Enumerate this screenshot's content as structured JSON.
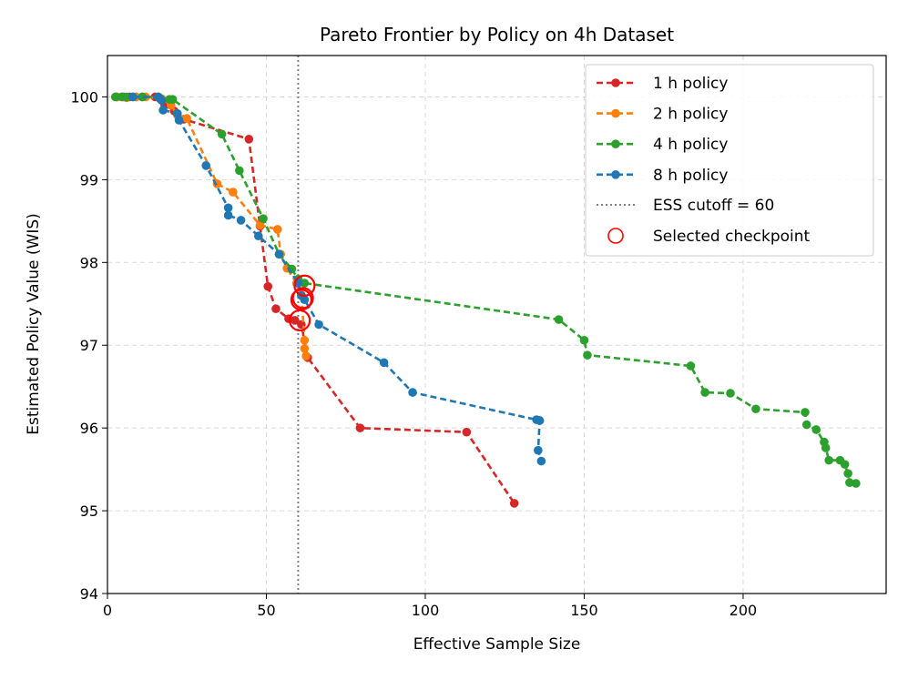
{
  "chart_data": {
    "type": "line",
    "title": "Pareto Frontier by Policy on 4h Dataset",
    "xlabel": "Effective Sample Size",
    "ylabel": "Estimated Policy Value (WIS)",
    "xlim": [
      0,
      245
    ],
    "ylim": [
      94,
      100.5
    ],
    "xticks": [
      0,
      50,
      100,
      150,
      200
    ],
    "yticks": [
      94,
      95,
      96,
      97,
      98,
      99,
      100
    ],
    "grid": true,
    "legend_position": "top-right",
    "ess_cutoff": {
      "x": 60,
      "label": "ESS cutoff = 60",
      "color": "#808080"
    },
    "selected_label": "Selected checkpoint",
    "selected_color": "#ff0000",
    "series": [
      {
        "name": "1 h policy",
        "color": "#d62728",
        "points": [
          [
            3,
            100.0
          ],
          [
            5,
            100.0
          ],
          [
            7,
            100.0
          ],
          [
            9,
            100.0
          ],
          [
            11,
            100.0
          ],
          [
            15,
            100.0
          ],
          [
            18,
            99.9
          ],
          [
            21,
            99.83
          ],
          [
            24,
            99.73
          ],
          [
            44.5,
            99.49
          ],
          [
            48,
            98.44
          ],
          [
            50.5,
            97.71
          ],
          [
            53,
            97.44
          ],
          [
            57,
            97.32
          ],
          [
            59,
            97.3
          ],
          [
            61,
            97.25
          ],
          [
            63,
            96.85
          ],
          [
            79.5,
            96.0
          ],
          [
            113,
            95.95
          ],
          [
            128,
            95.09
          ]
        ],
        "selected": [
          61,
          97.55
        ]
      },
      {
        "name": "2 h policy",
        "color": "#ff7f0e",
        "points": [
          [
            3,
            100.0
          ],
          [
            6,
            99.99
          ],
          [
            9,
            100.0
          ],
          [
            12,
            100.0
          ],
          [
            17,
            99.98
          ],
          [
            20,
            99.9
          ],
          [
            22,
            99.78
          ],
          [
            25,
            99.74
          ],
          [
            34.5,
            98.95
          ],
          [
            39.5,
            98.85
          ],
          [
            48,
            98.45
          ],
          [
            53.5,
            98.4
          ],
          [
            54.5,
            98.1
          ],
          [
            56.5,
            97.93
          ],
          [
            59.5,
            97.75
          ],
          [
            61,
            97.61
          ],
          [
            62,
            97.06
          ],
          [
            62,
            96.96
          ],
          [
            62.5,
            96.87
          ]
        ],
        "selected": [
          60.5,
          97.3
        ]
      },
      {
        "name": "4 h policy",
        "color": "#2ca02c",
        "points": [
          [
            2.5,
            100.0
          ],
          [
            4.5,
            100.0
          ],
          [
            6,
            100.0
          ],
          [
            8,
            100.0
          ],
          [
            11,
            100.0
          ],
          [
            16,
            100.0
          ],
          [
            19.5,
            99.97
          ],
          [
            20.5,
            99.97
          ],
          [
            36,
            99.55
          ],
          [
            41.5,
            99.11
          ],
          [
            49,
            98.53
          ],
          [
            54,
            98.1
          ],
          [
            58,
            97.92
          ],
          [
            60,
            97.8
          ],
          [
            62,
            97.75
          ],
          [
            142,
            97.31
          ],
          [
            150,
            97.06
          ],
          [
            151,
            96.88
          ],
          [
            183.5,
            96.75
          ],
          [
            188,
            96.43
          ],
          [
            196,
            96.42
          ],
          [
            204,
            96.23
          ],
          [
            219.5,
            96.19
          ],
          [
            220,
            96.04
          ],
          [
            223,
            95.98
          ],
          [
            225.5,
            95.83
          ],
          [
            226,
            95.76
          ],
          [
            227,
            95.61
          ],
          [
            230.5,
            95.61
          ],
          [
            232,
            95.56
          ],
          [
            233,
            95.45
          ],
          [
            233.5,
            95.34
          ],
          [
            235.5,
            95.33
          ]
        ],
        "selected": [
          62,
          97.72
        ]
      },
      {
        "name": "8 h policy",
        "color": "#1f77b4",
        "points": [
          [
            8,
            100.0
          ],
          [
            16,
            100.0
          ],
          [
            16.5,
            99.98
          ],
          [
            17,
            99.96
          ],
          [
            17.5,
            99.84
          ],
          [
            22,
            99.8
          ],
          [
            22.5,
            99.72
          ],
          [
            31,
            99.17
          ],
          [
            38,
            98.66
          ],
          [
            38,
            98.57
          ],
          [
            42,
            98.51
          ],
          [
            47.5,
            98.32
          ],
          [
            54,
            98.1
          ],
          [
            60,
            97.75
          ],
          [
            61,
            97.6
          ],
          [
            62,
            97.55
          ],
          [
            66.5,
            97.25
          ],
          [
            87,
            96.79
          ],
          [
            96,
            96.43
          ],
          [
            135,
            96.1
          ],
          [
            136,
            96.09
          ],
          [
            135.5,
            95.73
          ],
          [
            136.5,
            95.6
          ]
        ],
        "selected": [
          61.5,
          97.57
        ]
      }
    ]
  }
}
